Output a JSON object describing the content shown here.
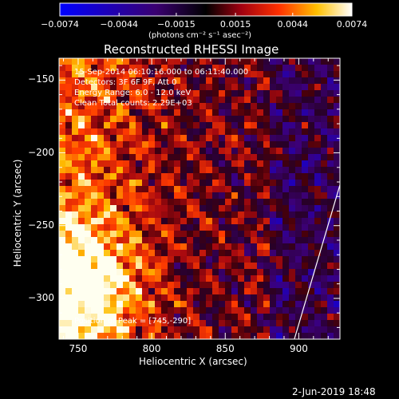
{
  "chart_data": {
    "type": "heatmap",
    "title": "Reconstructed RHESSI Image",
    "xlabel": "Heliocentric X (arcsec)",
    "ylabel": "Heliocentric Y (arcsec)",
    "xlim": [
      737,
      928
    ],
    "ylim": [
      -328,
      -135
    ],
    "x_ticks": [
      750,
      800,
      850,
      900
    ],
    "y_ticks": [
      -150,
      -200,
      -250,
      -300
    ],
    "x_tick_labels": [
      "750",
      "800",
      "850",
      "900"
    ],
    "y_tick_labels": [
      "−150",
      "−200",
      "−250",
      "−300"
    ],
    "colorbar": {
      "range": [
        -0.0074,
        0.0074
      ],
      "ticks": [
        -0.0074,
        -0.0044,
        -0.0015,
        0.0015,
        0.0044,
        0.0074
      ],
      "tick_labels": [
        "−0.0074",
        "−0.0044",
        "−0.0015",
        "0.0015",
        "0.0044",
        "0.0074"
      ],
      "unit_label": "(photons cm⁻² s⁻¹ asec⁻²)"
    },
    "annotations": [
      "15-Sep-2014 06:10:16.000 to 06:11:40.000",
      "Detectors: 3F 6F 9F, Att 0",
      "Energy Range: 6.0 - 12.0 keV",
      "Clean     Total counts: 2.29E+03"
    ],
    "peak_label": "Position of Peak = [745,-290]",
    "peak": [
      745,
      -290
    ],
    "limb_line": [
      [
        897,
        -328
      ],
      [
        928,
        -222
      ]
    ],
    "timestamp": "2-Jun-2019 18:48",
    "colors": {
      "background": "#000000",
      "cmap": [
        "#0000ff",
        "#000000",
        "#ff0000",
        "#ffff00",
        "#ffffff"
      ]
    }
  }
}
